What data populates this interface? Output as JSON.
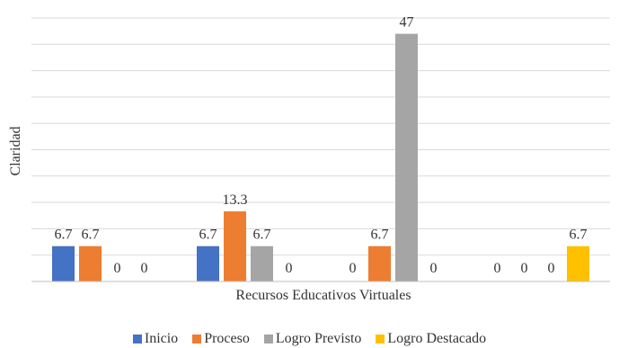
{
  "chart_data": {
    "type": "bar",
    "title": "",
    "xlabel": "Recursos Educativos Virtuales",
    "ylabel": "Claridad",
    "ylim": [
      0,
      50
    ],
    "grid": true,
    "legend_position": "bottom",
    "categories": [
      "",
      "",
      "",
      ""
    ],
    "series": [
      {
        "name": "Inicio",
        "color": "#4472C4",
        "values": [
          6.7,
          6.7,
          0,
          0
        ],
        "labels": [
          "6.7",
          "6.7",
          "0",
          "0"
        ]
      },
      {
        "name": "Proceso",
        "color": "#ED7D31",
        "values": [
          6.7,
          13.3,
          6.7,
          0
        ],
        "labels": [
          "6.7",
          "13.3",
          "6.7",
          "0"
        ]
      },
      {
        "name": "Logro Previsto",
        "color": "#A5A5A5",
        "values": [
          0,
          6.7,
          47,
          0
        ],
        "labels": [
          "0",
          "6.7",
          "47",
          "0"
        ]
      },
      {
        "name": "Logro Destacado",
        "color": "#FFC000",
        "values": [
          0,
          0,
          0,
          6.7
        ],
        "labels": [
          "0",
          "0",
          "0",
          "6.7"
        ]
      }
    ]
  }
}
